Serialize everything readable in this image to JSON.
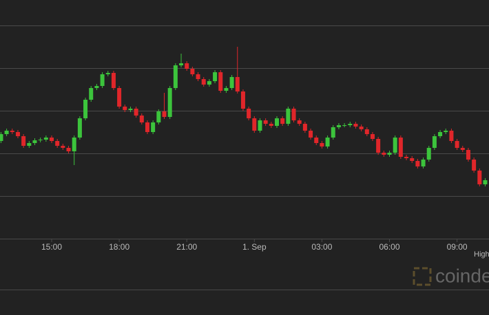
{
  "chart_data": {
    "type": "candlestick",
    "xlim": [
      -2.294,
      19.419
    ],
    "xticks": [
      {
        "value": 0,
        "label": "15:00"
      },
      {
        "value": 3,
        "label": "18:00"
      },
      {
        "value": 6,
        "label": "21:00"
      },
      {
        "value": 9,
        "label": "1. Sep"
      },
      {
        "value": 12,
        "label": "03:00"
      },
      {
        "value": 15,
        "label": "06:00"
      },
      {
        "value": 18,
        "label": "09:00"
      }
    ],
    "ylim": [
      0,
      347
    ],
    "yticks": [
      0,
      62,
      124,
      186,
      248,
      310
    ],
    "grid": true,
    "up_color": "#3cc43c",
    "down_color": "#e0262a",
    "x": [
      -2.25,
      -2,
      -1.75,
      -1.5,
      -1.25,
      -1,
      -0.75,
      -0.5,
      -0.25,
      0,
      0.25,
      0.5,
      0.75,
      1,
      1.25,
      1.5,
      1.75,
      2,
      2.25,
      2.5,
      2.75,
      3,
      3.25,
      3.5,
      3.75,
      4,
      4.25,
      4.5,
      4.75,
      5,
      5.25,
      5.5,
      5.75,
      6,
      6.25,
      6.5,
      6.75,
      7,
      7.25,
      7.5,
      7.75,
      8,
      8.25,
      8.5,
      8.75,
      9,
      9.25,
      9.5,
      9.75,
      10,
      10.25,
      10.5,
      10.75,
      11,
      11.25,
      11.5,
      11.75,
      12,
      12.25,
      12.5,
      12.75,
      13,
      13.25,
      13.5,
      13.75,
      14,
      14.25,
      14.5,
      14.75,
      15,
      15.25,
      15.5,
      15.75,
      16,
      16.25,
      16.5,
      16.75,
      17,
      17.25,
      17.5,
      17.75,
      18,
      18.25,
      18.5,
      18.75,
      19,
      19.25
    ],
    "open": [
      142,
      152,
      157,
      155,
      149,
      135,
      139,
      143,
      144,
      147,
      142,
      135,
      132,
      127,
      147,
      175,
      202,
      219,
      222,
      239,
      241,
      219,
      192,
      187,
      189,
      179,
      169,
      155,
      169,
      185,
      177,
      219,
      252,
      255,
      247,
      239,
      232,
      224,
      229,
      242,
      215,
      219,
      235,
      214,
      189,
      175,
      157,
      172,
      167,
      164,
      175,
      167,
      189,
      172,
      167,
      157,
      147,
      139,
      134,
      147,
      162,
      165,
      165,
      167,
      163,
      159,
      152,
      145,
      125,
      122,
      125,
      147,
      119,
      117,
      113,
      105,
      115,
      132,
      149,
      155,
      157,
      142,
      132,
      129,
      115,
      99,
      79
    ],
    "high": [
      155,
      160,
      160,
      158,
      152,
      142,
      146,
      147,
      150,
      150,
      145,
      138,
      135,
      150,
      178,
      205,
      222,
      225,
      242,
      244,
      244,
      222,
      195,
      192,
      192,
      182,
      172,
      172,
      188,
      212,
      222,
      255,
      269,
      258,
      250,
      242,
      235,
      232,
      245,
      245,
      222,
      238,
      279,
      217,
      192,
      178,
      175,
      175,
      170,
      178,
      178,
      192,
      192,
      175,
      170,
      160,
      150,
      142,
      150,
      165,
      168,
      168,
      170,
      170,
      166,
      162,
      155,
      148,
      128,
      128,
      150,
      150,
      122,
      120,
      116,
      118,
      135,
      152,
      158,
      160,
      160,
      145,
      135,
      132,
      118,
      102,
      88
    ],
    "low": [
      139,
      149,
      152,
      146,
      132,
      132,
      136,
      140,
      141,
      139,
      132,
      129,
      124,
      107,
      144,
      172,
      199,
      216,
      219,
      236,
      216,
      189,
      184,
      184,
      176,
      166,
      152,
      152,
      166,
      174,
      174,
      216,
      249,
      244,
      236,
      229,
      221,
      221,
      226,
      212,
      212,
      216,
      211,
      186,
      172,
      154,
      154,
      164,
      161,
      161,
      164,
      164,
      169,
      164,
      154,
      144,
      136,
      131,
      131,
      144,
      159,
      162,
      162,
      160,
      156,
      149,
      142,
      122,
      119,
      119,
      122,
      116,
      114,
      110,
      102,
      102,
      112,
      129,
      146,
      152,
      139,
      129,
      126,
      112,
      96,
      76,
      76
    ],
    "close": [
      152,
      157,
      155,
      149,
      135,
      139,
      143,
      144,
      147,
      142,
      135,
      132,
      127,
      147,
      175,
      202,
      219,
      222,
      239,
      241,
      219,
      192,
      187,
      189,
      179,
      169,
      155,
      169,
      185,
      177,
      219,
      252,
      255,
      247,
      239,
      232,
      224,
      229,
      242,
      215,
      219,
      235,
      214,
      189,
      175,
      157,
      172,
      167,
      164,
      175,
      167,
      189,
      172,
      167,
      157,
      147,
      139,
      134,
      147,
      162,
      165,
      165,
      167,
      163,
      159,
      152,
      145,
      125,
      122,
      125,
      147,
      119,
      117,
      113,
      105,
      115,
      132,
      149,
      155,
      157,
      142,
      132,
      129,
      115,
      99,
      79,
      85
    ],
    "legend_label": "High",
    "watermark": "coindesk"
  }
}
